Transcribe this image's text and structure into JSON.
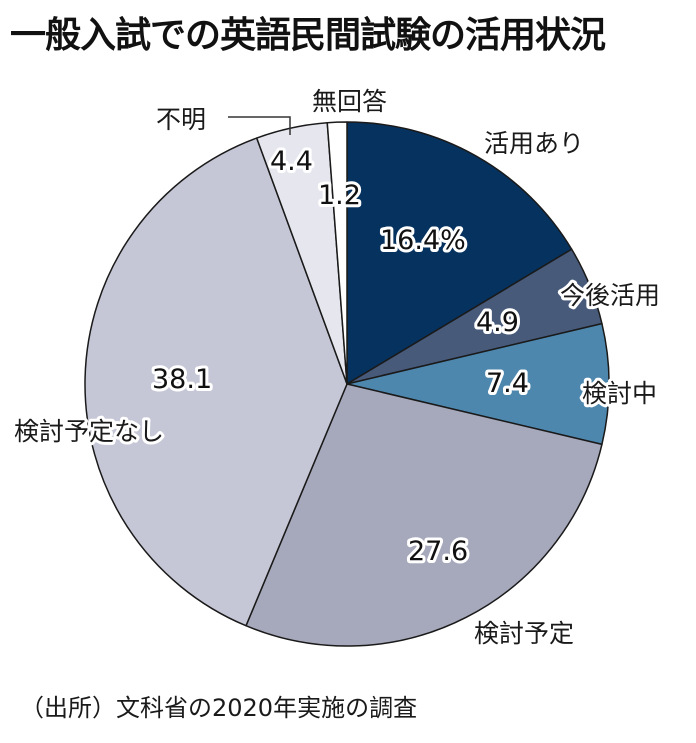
{
  "title": "一般入試での英語民間試験の活用状況",
  "source": "（出所）文科省の2020年実施の調査",
  "chart_data": {
    "type": "pie",
    "title": "一般入試での英語民間試験の活用状況",
    "unit": "%",
    "start_angle": "12 o'clock, clockwise",
    "categories": [
      "活用あり",
      "今後活用",
      "検討中",
      "検討予定",
      "検討予定なし",
      "不明",
      "無回答"
    ],
    "values": [
      16.4,
      4.9,
      7.4,
      27.6,
      38.1,
      4.4,
      1.2
    ],
    "value_labels": [
      "16.4%",
      "4.9",
      "7.4",
      "27.6",
      "38.1",
      "4.4",
      "1.2"
    ],
    "colors": [
      "#06325f",
      "#475a7a",
      "#4d87ae",
      "#a6a8bb",
      "#c5c7d6",
      "#e6e7ee",
      "#ffffff"
    ],
    "source": "（出所）文科省の2020年実施の調査"
  }
}
